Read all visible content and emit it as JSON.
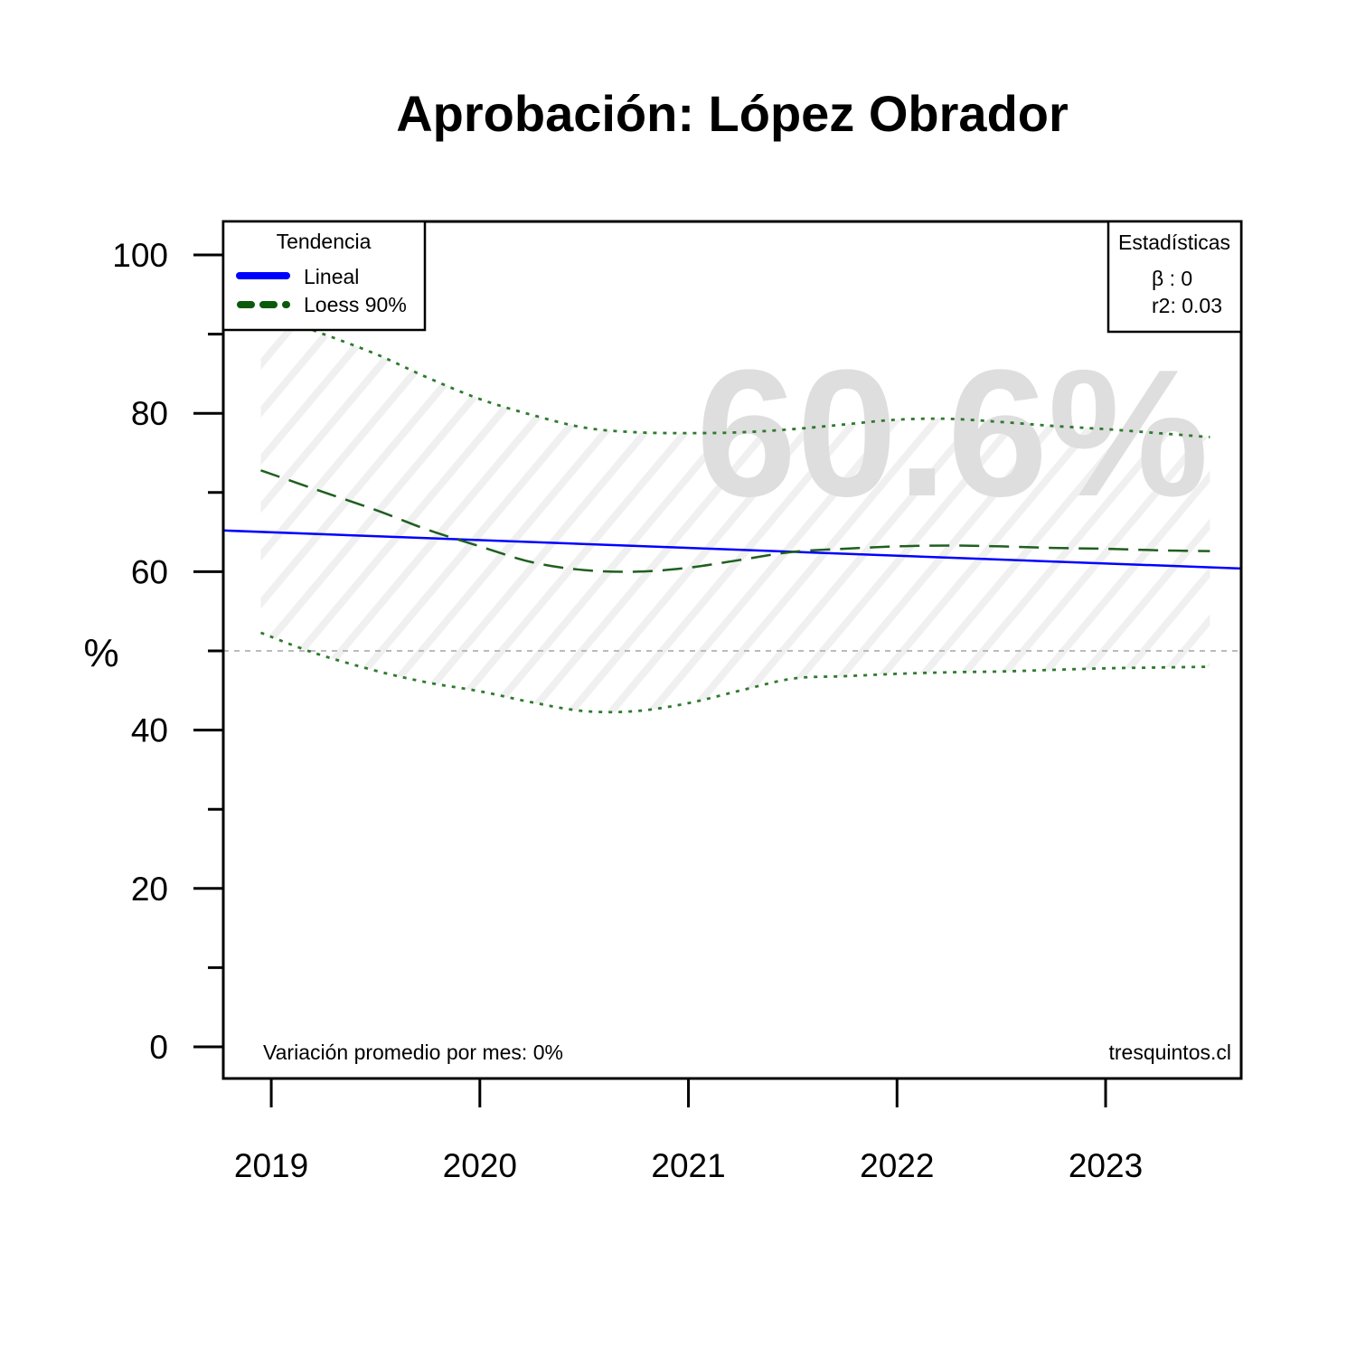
{
  "chart_data": {
    "type": "line",
    "title": "Aprobación: López Obrador",
    "ylabel": "%",
    "xlabel": "",
    "ylim": [
      0,
      100
    ],
    "y_ticks": [
      0,
      20,
      40,
      60,
      80,
      100
    ],
    "y_minor_ticks": [
      10,
      30,
      50,
      70,
      90
    ],
    "x_ticks": [
      2019,
      2020,
      2021,
      2022,
      2023
    ],
    "xlim": [
      2018.77,
      2023.65
    ],
    "reference_line": {
      "y": 50,
      "style": "dotted",
      "color": "#bbbbbb"
    },
    "big_value": "60.6%",
    "legend_title": "Tendencia",
    "legend": [
      {
        "label": "Lineal",
        "color": "#0000ff",
        "style": "solid"
      },
      {
        "label": "Loess 90%",
        "color": "#0a5a0a",
        "style": "dashed"
      }
    ],
    "stats_title": "Estadísticas",
    "stats": [
      "β : 0",
      "r2: 0.03"
    ],
    "footer_left": "Variación promedio por mes: 0%",
    "footer_right": "tresquintos.cl",
    "series": [
      {
        "name": "Lineal",
        "color": "#0000ff",
        "style": "solid",
        "x": [
          2018.77,
          2023.65
        ],
        "values": [
          65.2,
          60.4
        ]
      },
      {
        "name": "Loess 90%",
        "color": "#1f5f1f",
        "style": "dashed",
        "x": [
          2018.95,
          2019.2,
          2019.5,
          2019.75,
          2020.0,
          2020.25,
          2020.5,
          2020.75,
          2021.0,
          2021.25,
          2021.5,
          2021.75,
          2022.0,
          2022.25,
          2022.5,
          2022.75,
          2023.0,
          2023.25,
          2023.5
        ],
        "values": [
          72.8,
          70.5,
          67.8,
          65.3,
          63.2,
          61.2,
          60.2,
          60.0,
          60.5,
          61.5,
          62.5,
          62.9,
          63.2,
          63.3,
          63.2,
          63.0,
          62.9,
          62.7,
          62.6
        ]
      },
      {
        "name": "upper",
        "color": "#2f7a2f",
        "style": "dotted",
        "x": [
          2019.2,
          2019.5,
          2019.75,
          2020.0,
          2020.25,
          2020.5,
          2020.75,
          2021.0,
          2021.25,
          2021.5,
          2021.75,
          2022.0,
          2022.25,
          2022.5,
          2022.75,
          2023.0,
          2023.25,
          2023.5
        ],
        "values": [
          90.5,
          87.5,
          84.5,
          81.8,
          79.8,
          78.2,
          77.6,
          77.5,
          77.6,
          78.0,
          78.6,
          79.2,
          79.3,
          78.9,
          78.4,
          78.0,
          77.5,
          77.0
        ]
      },
      {
        "name": "lower",
        "color": "#2f7a2f",
        "style": "dotted",
        "x": [
          2018.95,
          2019.2,
          2019.5,
          2019.75,
          2020.0,
          2020.25,
          2020.5,
          2020.75,
          2021.0,
          2021.25,
          2021.5,
          2021.75,
          2022.0,
          2022.25,
          2022.5,
          2022.75,
          2023.0,
          2023.25,
          2023.5
        ],
        "values": [
          52.3,
          49.8,
          47.5,
          46.0,
          44.9,
          43.5,
          42.4,
          42.4,
          43.4,
          45.0,
          46.5,
          46.8,
          47.1,
          47.3,
          47.4,
          47.6,
          47.8,
          47.9,
          48.0
        ]
      }
    ]
  }
}
